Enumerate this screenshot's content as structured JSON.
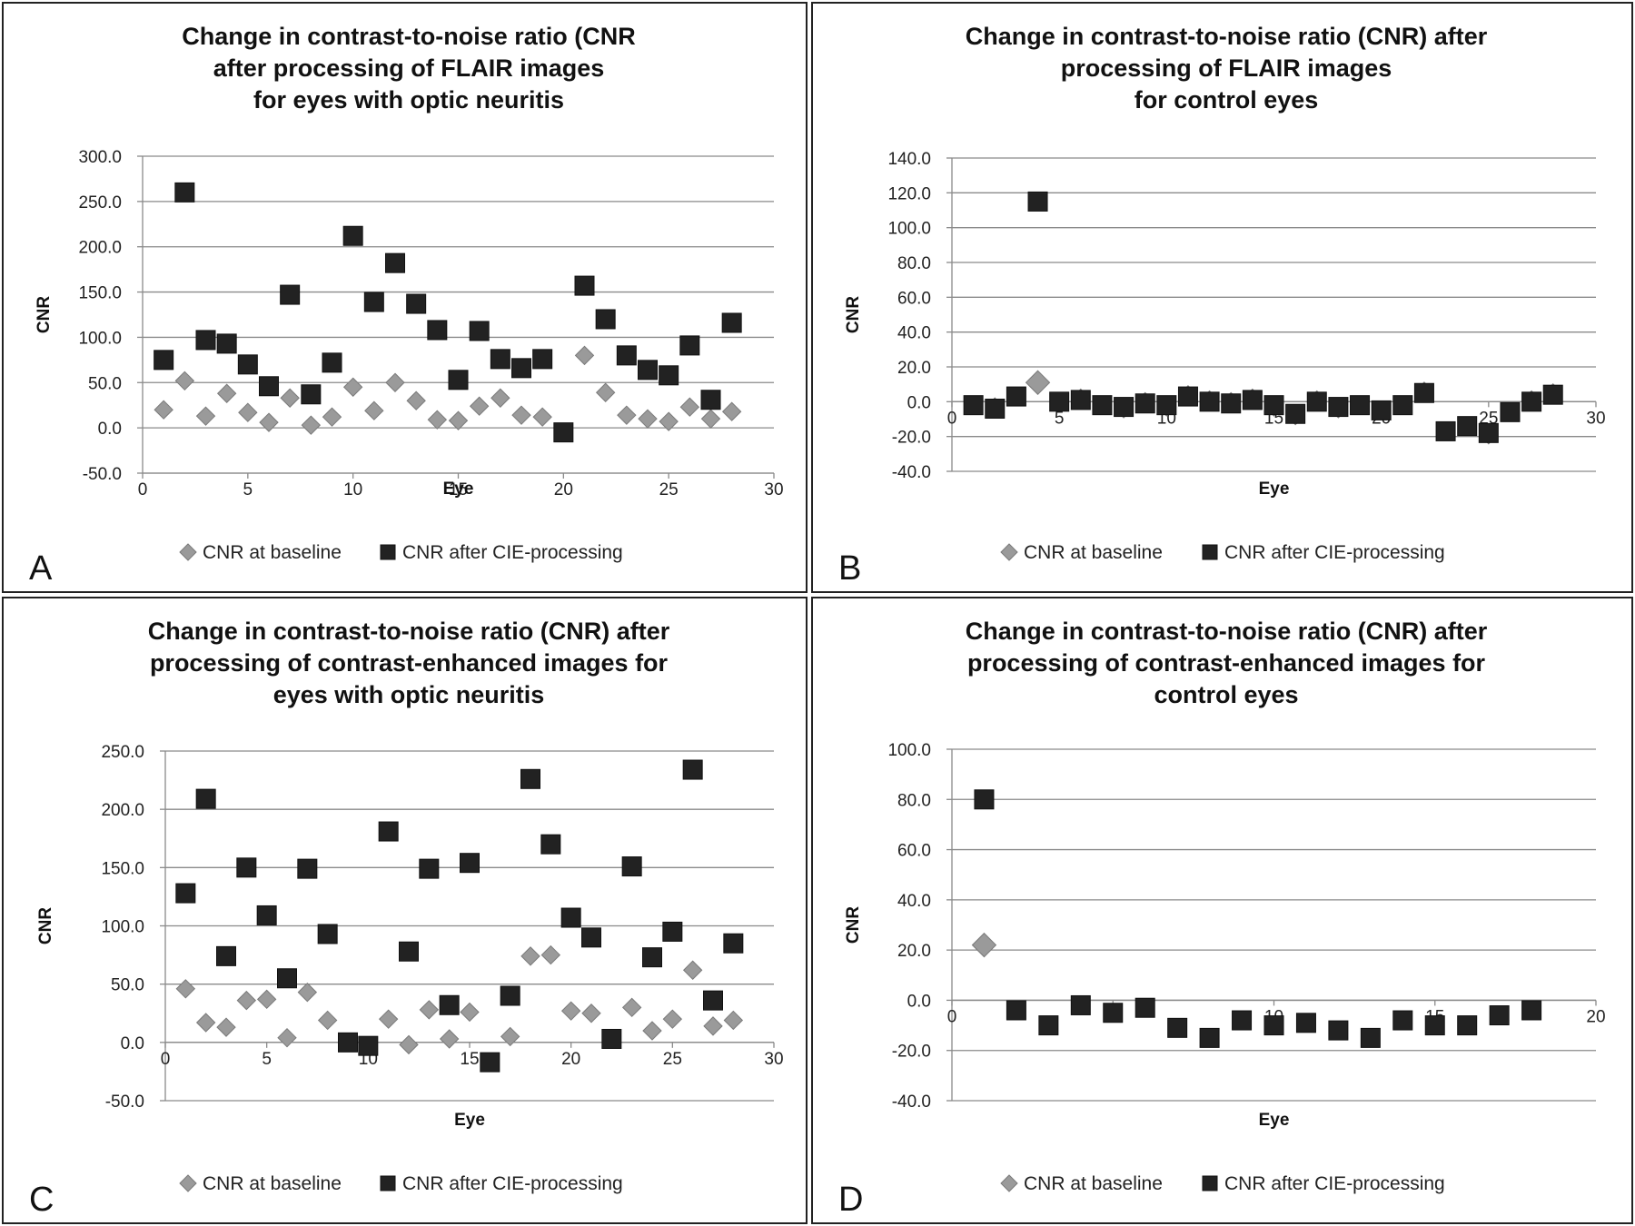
{
  "chart_data": [
    {
      "type": "scatter",
      "panel_label": "A",
      "title": [
        "Change in contrast-to-noise ratio (CNR",
        "after processing of FLAIR images",
        "for eyes with optic neuritis"
      ],
      "xlabel": "Eye",
      "ylabel": "CNR",
      "xlim": [
        0,
        30
      ],
      "ylim": [
        -50,
        300
      ],
      "xticks": [
        0,
        5,
        10,
        15,
        20,
        25,
        30
      ],
      "yticks": [
        -50.0,
        0.0,
        50.0,
        100.0,
        150.0,
        200.0,
        250.0,
        300.0
      ],
      "grid": true,
      "legend_position": "bottom",
      "series": [
        {
          "name": "CNR at baseline",
          "marker": "diamond",
          "color": "#9a9a9a",
          "x": [
            1,
            2,
            3,
            4,
            5,
            6,
            7,
            8,
            9,
            10,
            11,
            12,
            13,
            14,
            15,
            16,
            17,
            18,
            19,
            20,
            21,
            22,
            23,
            24,
            25,
            26,
            27,
            28
          ],
          "y": [
            20,
            52,
            13,
            38,
            17,
            6,
            33,
            3,
            12,
            45,
            19,
            50,
            30,
            9,
            8,
            24,
            33,
            14,
            12,
            -5,
            80,
            39,
            14,
            10,
            7,
            23,
            10,
            18
          ]
        },
        {
          "name": "CNR after CIE-processing",
          "marker": "square",
          "color": "#222222",
          "x": [
            1,
            2,
            3,
            4,
            5,
            6,
            7,
            8,
            9,
            10,
            11,
            12,
            13,
            14,
            15,
            16,
            17,
            18,
            19,
            20,
            21,
            22,
            23,
            24,
            25,
            26,
            27,
            28
          ],
          "y": [
            75,
            260,
            97,
            93,
            70,
            46,
            147,
            37,
            72,
            212,
            139,
            182,
            137,
            108,
            53,
            107,
            76,
            66,
            76,
            -5,
            157,
            120,
            80,
            64,
            58,
            91,
            31,
            116
          ]
        }
      ]
    },
    {
      "type": "scatter",
      "panel_label": "B",
      "title": [
        "Change in contrast-to-noise ratio (CNR) after",
        "processing of FLAIR images",
        "for control eyes"
      ],
      "xlabel": "Eye",
      "ylabel": "CNR",
      "xlim": [
        0,
        30
      ],
      "ylim": [
        -40,
        140
      ],
      "xticks": [
        0,
        5,
        10,
        15,
        20,
        25,
        30
      ],
      "yticks": [
        -40.0,
        -20.0,
        0.0,
        20.0,
        40.0,
        60.0,
        80.0,
        100.0,
        120.0,
        140.0
      ],
      "grid": true,
      "legend_position": "bottom",
      "series": [
        {
          "name": "CNR at baseline",
          "marker": "diamond",
          "color": "#9a9a9a",
          "x": [
            1,
            2,
            3,
            4,
            5,
            6,
            7,
            8,
            9,
            10,
            11,
            12,
            13,
            14,
            15,
            16,
            17,
            18,
            19,
            20,
            21,
            22,
            23,
            24,
            25,
            26,
            27,
            28
          ],
          "y": [
            -2,
            -3,
            3,
            11,
            0,
            2,
            -2,
            -4,
            0,
            -3,
            4,
            1,
            0,
            2,
            -3,
            -8,
            1,
            -4,
            -2,
            -5,
            -2,
            6,
            -17,
            -14,
            -19,
            -6,
            1,
            5
          ]
        },
        {
          "name": "CNR after CIE-processing",
          "marker": "square",
          "color": "#222222",
          "x": [
            1,
            2,
            3,
            4,
            5,
            6,
            7,
            8,
            9,
            10,
            11,
            12,
            13,
            14,
            15,
            16,
            17,
            18,
            19,
            20,
            21,
            22,
            23,
            24,
            25,
            26,
            27,
            28
          ],
          "y": [
            -2,
            -4,
            3,
            115,
            0,
            1,
            -2,
            -3,
            -1,
            -2,
            3,
            0,
            -1,
            1,
            -2,
            -7,
            0,
            -3,
            -2,
            -5,
            -2,
            5,
            -17,
            -14,
            -18,
            -6,
            0,
            4
          ]
        }
      ]
    },
    {
      "type": "scatter",
      "panel_label": "C",
      "title": [
        "Change in contrast-to-noise ratio (CNR) after",
        "processing of contrast-enhanced images for",
        "eyes with optic neuritis"
      ],
      "xlabel": "Eye",
      "ylabel": "CNR",
      "xlim": [
        0,
        30
      ],
      "ylim": [
        -50,
        250
      ],
      "xticks": [
        0,
        5,
        10,
        15,
        20,
        25,
        30
      ],
      "yticks": [
        -50.0,
        0.0,
        50.0,
        100.0,
        150.0,
        200.0,
        250.0
      ],
      "grid": true,
      "legend_position": "bottom",
      "series": [
        {
          "name": "CNR at baseline",
          "marker": "diamond",
          "color": "#9a9a9a",
          "x": [
            1,
            2,
            3,
            4,
            5,
            6,
            7,
            8,
            9,
            10,
            11,
            12,
            13,
            14,
            15,
            16,
            17,
            18,
            19,
            20,
            21,
            22,
            23,
            24,
            25,
            26,
            27,
            28
          ],
          "y": [
            46,
            17,
            13,
            36,
            37,
            4,
            43,
            19,
            0,
            -3,
            20,
            -2,
            28,
            3,
            26,
            -17,
            5,
            74,
            75,
            27,
            25,
            3,
            30,
            10,
            20,
            62,
            14,
            19
          ]
        },
        {
          "name": "CNR after CIE-processing",
          "marker": "square",
          "color": "#222222",
          "x": [
            1,
            2,
            3,
            4,
            5,
            6,
            7,
            8,
            9,
            10,
            11,
            12,
            13,
            14,
            15,
            16,
            17,
            18,
            19,
            20,
            21,
            22,
            23,
            24,
            25,
            26,
            27,
            28
          ],
          "y": [
            128,
            209,
            74,
            150,
            109,
            55,
            149,
            93,
            0,
            -3,
            181,
            78,
            149,
            32,
            154,
            -17,
            40,
            226,
            170,
            107,
            90,
            3,
            151,
            73,
            95,
            234,
            36,
            85
          ]
        }
      ]
    },
    {
      "type": "scatter",
      "panel_label": "D",
      "title": [
        "Change in contrast-to-noise ratio (CNR) after",
        "processing of contrast-enhanced images for",
        "control eyes"
      ],
      "xlabel": "Eye",
      "ylabel": "CNR",
      "xlim": [
        0,
        20
      ],
      "ylim": [
        -40,
        100
      ],
      "xticks": [
        0,
        5,
        10,
        15,
        20
      ],
      "yticks": [
        -40.0,
        -20.0,
        0.0,
        20.0,
        40.0,
        60.0,
        80.0,
        100.0
      ],
      "grid": true,
      "legend_position": "bottom",
      "series": [
        {
          "name": "CNR at baseline",
          "marker": "diamond",
          "color": "#9a9a9a",
          "x": [
            1,
            2,
            3,
            4,
            5,
            6,
            7,
            8,
            9,
            10,
            11,
            12,
            13,
            14,
            15,
            16,
            17,
            18
          ],
          "y": [
            22,
            -4,
            -10,
            -2,
            -5,
            -3,
            -11,
            -15,
            -8,
            -10,
            -9,
            -12,
            -15,
            -8,
            -10,
            -10,
            -6,
            -4
          ]
        },
        {
          "name": "CNR after CIE-processing",
          "marker": "square",
          "color": "#222222",
          "x": [
            1,
            2,
            3,
            4,
            5,
            6,
            7,
            8,
            9,
            10,
            11,
            12,
            13,
            14,
            15,
            16,
            17,
            18
          ],
          "y": [
            80,
            -4,
            -10,
            -2,
            -5,
            -3,
            -11,
            -15,
            -8,
            -10,
            -9,
            -12,
            -15,
            -8,
            -10,
            -10,
            -6,
            -4
          ]
        }
      ]
    }
  ]
}
